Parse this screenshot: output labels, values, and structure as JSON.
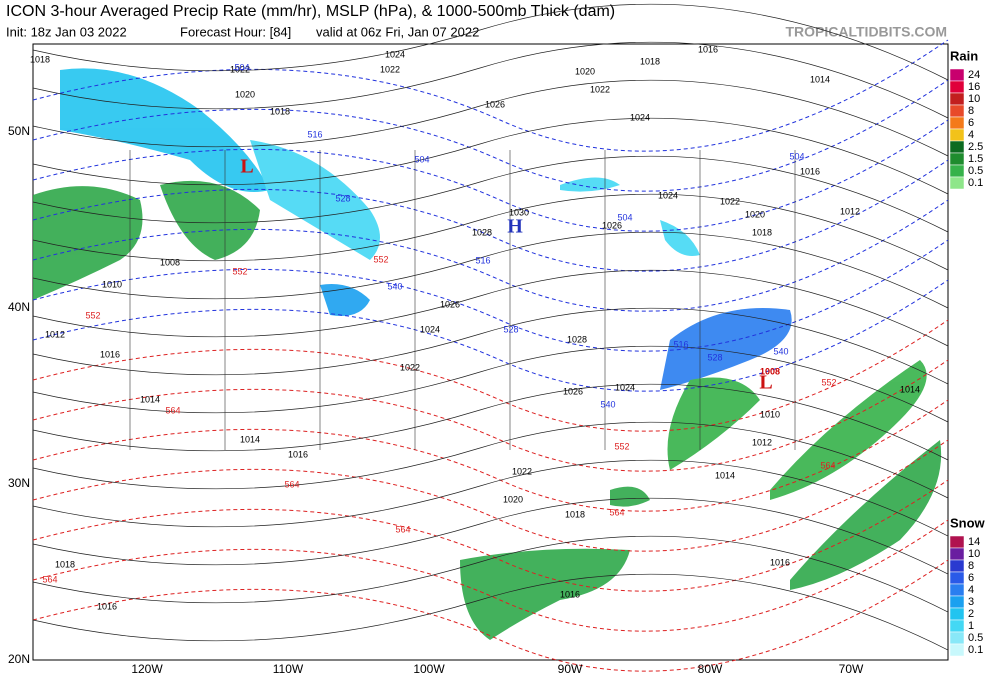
{
  "header": {
    "title": "ICON 3-hour Averaged Precip Rate (mm/hr), MSLP (hPa), & 1000-500mb Thick (dam)",
    "init": "Init: 18z Jan 03 2022",
    "forecast": "Forecast Hour: [84]",
    "valid": "valid at 06z Fri, Jan 07 2022",
    "source": "TROPICALTIDBITS.COM"
  },
  "map": {
    "lat_labels": [
      "50N",
      "40N",
      "30N",
      "20N"
    ],
    "lon_labels": [
      "120W",
      "110W",
      "100W",
      "90W",
      "80W",
      "70W"
    ],
    "centers": [
      "H",
      "L",
      "L"
    ],
    "isobar_labels": [
      "1018",
      "1022",
      "1020",
      "1018",
      "1024",
      "1022",
      "1020",
      "1022",
      "1024",
      "1026",
      "1030",
      "1028",
      "1026",
      "1024",
      "1022",
      "1020",
      "1018",
      "1016",
      "1014",
      "1012",
      "1016",
      "1018",
      "1026",
      "1024",
      "1022",
      "1028",
      "1026",
      "1024",
      "1022",
      "1020",
      "1018",
      "1016",
      "1014",
      "1012",
      "1010",
      "1014",
      "1016",
      "1016",
      "1014",
      "1012",
      "1014",
      "1016",
      "1018",
      "1016",
      "1008",
      "1010",
      "1008"
    ],
    "thickness_labels": [
      504,
      516,
      528,
      540,
      552,
      504,
      516,
      528,
      540,
      552,
      564,
      504,
      516,
      528,
      540,
      552,
      564,
      504,
      552,
      564,
      564,
      564,
      564,
      552
    ]
  },
  "legend": {
    "rain": {
      "title": "Rain",
      "levels": [
        24,
        16,
        10,
        8,
        6,
        4,
        2.5,
        1.5,
        0.5,
        0.1
      ],
      "colors": [
        "#c8006e",
        "#e0003a",
        "#c21f1f",
        "#e84a2a",
        "#f47a1a",
        "#f2c21a",
        "#0c6b20",
        "#1e8c2e",
        "#36b24a",
        "#8ee68a"
      ]
    },
    "snow": {
      "title": "Snow",
      "levels": [
        14,
        10,
        8,
        6,
        4,
        3,
        2,
        1,
        0.5,
        0.1
      ],
      "colors": [
        "#b0124f",
        "#6a1ea0",
        "#2a3ad0",
        "#2a5ae8",
        "#2a7ef0",
        "#1aa0f0",
        "#22c4f0",
        "#44d8f4",
        "#88e8f8",
        "#c8f8fc"
      ]
    }
  }
}
